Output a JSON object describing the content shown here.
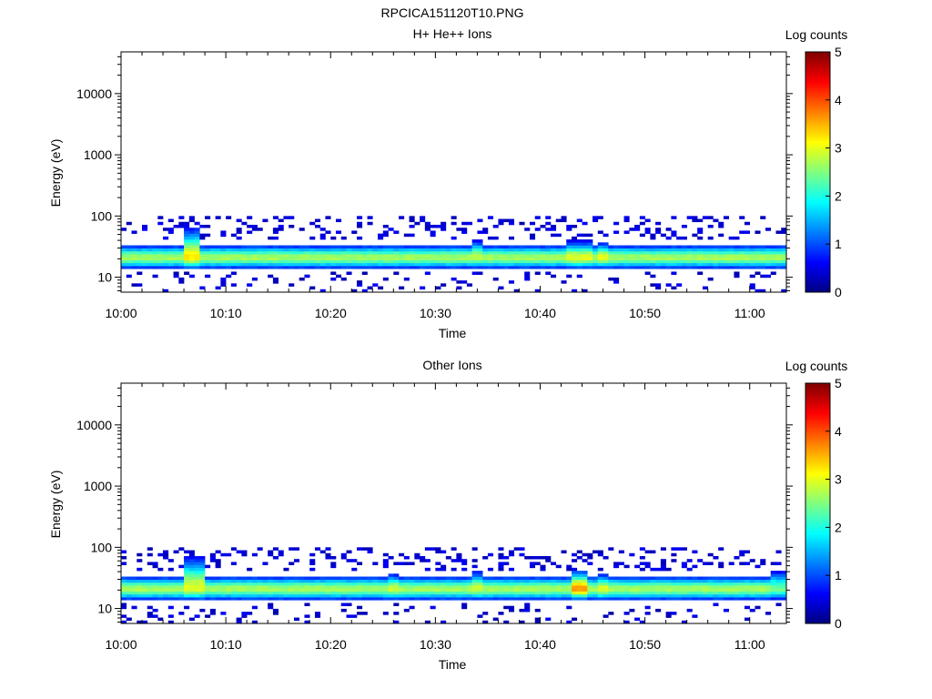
{
  "figure_title": "RPCICA151120T10.PNG",
  "chart_data": [
    {
      "type": "heatmap",
      "title": "H+ He++ Ions",
      "xlabel": "Time",
      "ylabel": "Energy (eV)",
      "colorbar_label": "Log counts",
      "colorbar_ticks": [
        "0",
        "1",
        "2",
        "3",
        "4",
        "5"
      ],
      "colorbar_range": [
        0,
        5
      ],
      "x_ticks": [
        "10:00",
        "10:10",
        "10:20",
        "10:30",
        "10:40",
        "10:50",
        "11:00"
      ],
      "x_range_minutes": [
        0,
        63.5
      ],
      "y_scale": "log",
      "y_ticks": [
        "10",
        "100",
        "1000",
        "10000"
      ],
      "y_range": [
        5.7,
        48000
      ],
      "grid": false,
      "colormap": "jet",
      "time_bin_minutes": 0.5,
      "band": {
        "center_energy_eV": 21,
        "core_log_counts": 2.7,
        "events": [
          {
            "start_minute": 6.0,
            "end_minute": 7.5,
            "peak_log_counts": 3.2,
            "upward_extension": 1.5
          },
          {
            "start_minute": 33.5,
            "end_minute": 34.5,
            "peak_log_counts": 2.8,
            "upward_extension": 0.4
          },
          {
            "start_minute": 42.5,
            "end_minute": 45.0,
            "peak_log_counts": 3.0,
            "upward_extension": 0.3
          },
          {
            "start_minute": 45.5,
            "end_minute": 46.5,
            "peak_log_counts": 3.0,
            "upward_extension": 0.2
          }
        ],
        "sparse_low_counts_above_eV": [
          40,
          95
        ],
        "sparse_low_counts_below_eV": [
          5.7,
          13
        ]
      }
    },
    {
      "type": "heatmap",
      "title": "Other Ions",
      "xlabel": "Time",
      "ylabel": "Energy (eV)",
      "colorbar_label": "Log counts",
      "colorbar_ticks": [
        "0",
        "1",
        "2",
        "3",
        "4",
        "5"
      ],
      "colorbar_range": [
        0,
        5
      ],
      "x_ticks": [
        "10:00",
        "10:10",
        "10:20",
        "10:30",
        "10:40",
        "10:50",
        "11:00"
      ],
      "x_range_minutes": [
        0,
        63.5
      ],
      "y_scale": "log",
      "y_ticks": [
        "10",
        "100",
        "1000",
        "10000"
      ],
      "y_range": [
        5.7,
        48000
      ],
      "grid": false,
      "colormap": "jet",
      "time_bin_minutes": 0.5,
      "band": {
        "center_energy_eV": 21,
        "core_log_counts": 2.7,
        "events": [
          {
            "start_minute": 6.0,
            "end_minute": 8.0,
            "peak_log_counts": 3.0,
            "upward_extension": 1.8
          },
          {
            "start_minute": 25.5,
            "end_minute": 26.5,
            "peak_log_counts": 2.9,
            "upward_extension": 0.2
          },
          {
            "start_minute": 33.5,
            "end_minute": 34.5,
            "peak_log_counts": 2.9,
            "upward_extension": 0.4
          },
          {
            "start_minute": 43.0,
            "end_minute": 44.5,
            "peak_log_counts": 3.6,
            "upward_extension": 0.5
          },
          {
            "start_minute": 45.5,
            "end_minute": 46.5,
            "peak_log_counts": 3.0,
            "upward_extension": 0.2
          },
          {
            "start_minute": 62.0,
            "end_minute": 63.5,
            "peak_log_counts": 2.4,
            "upward_extension": 0.5
          }
        ],
        "sparse_low_counts_above_eV": [
          40,
          95
        ],
        "sparse_low_counts_below_eV": [
          5.7,
          13
        ]
      }
    }
  ]
}
